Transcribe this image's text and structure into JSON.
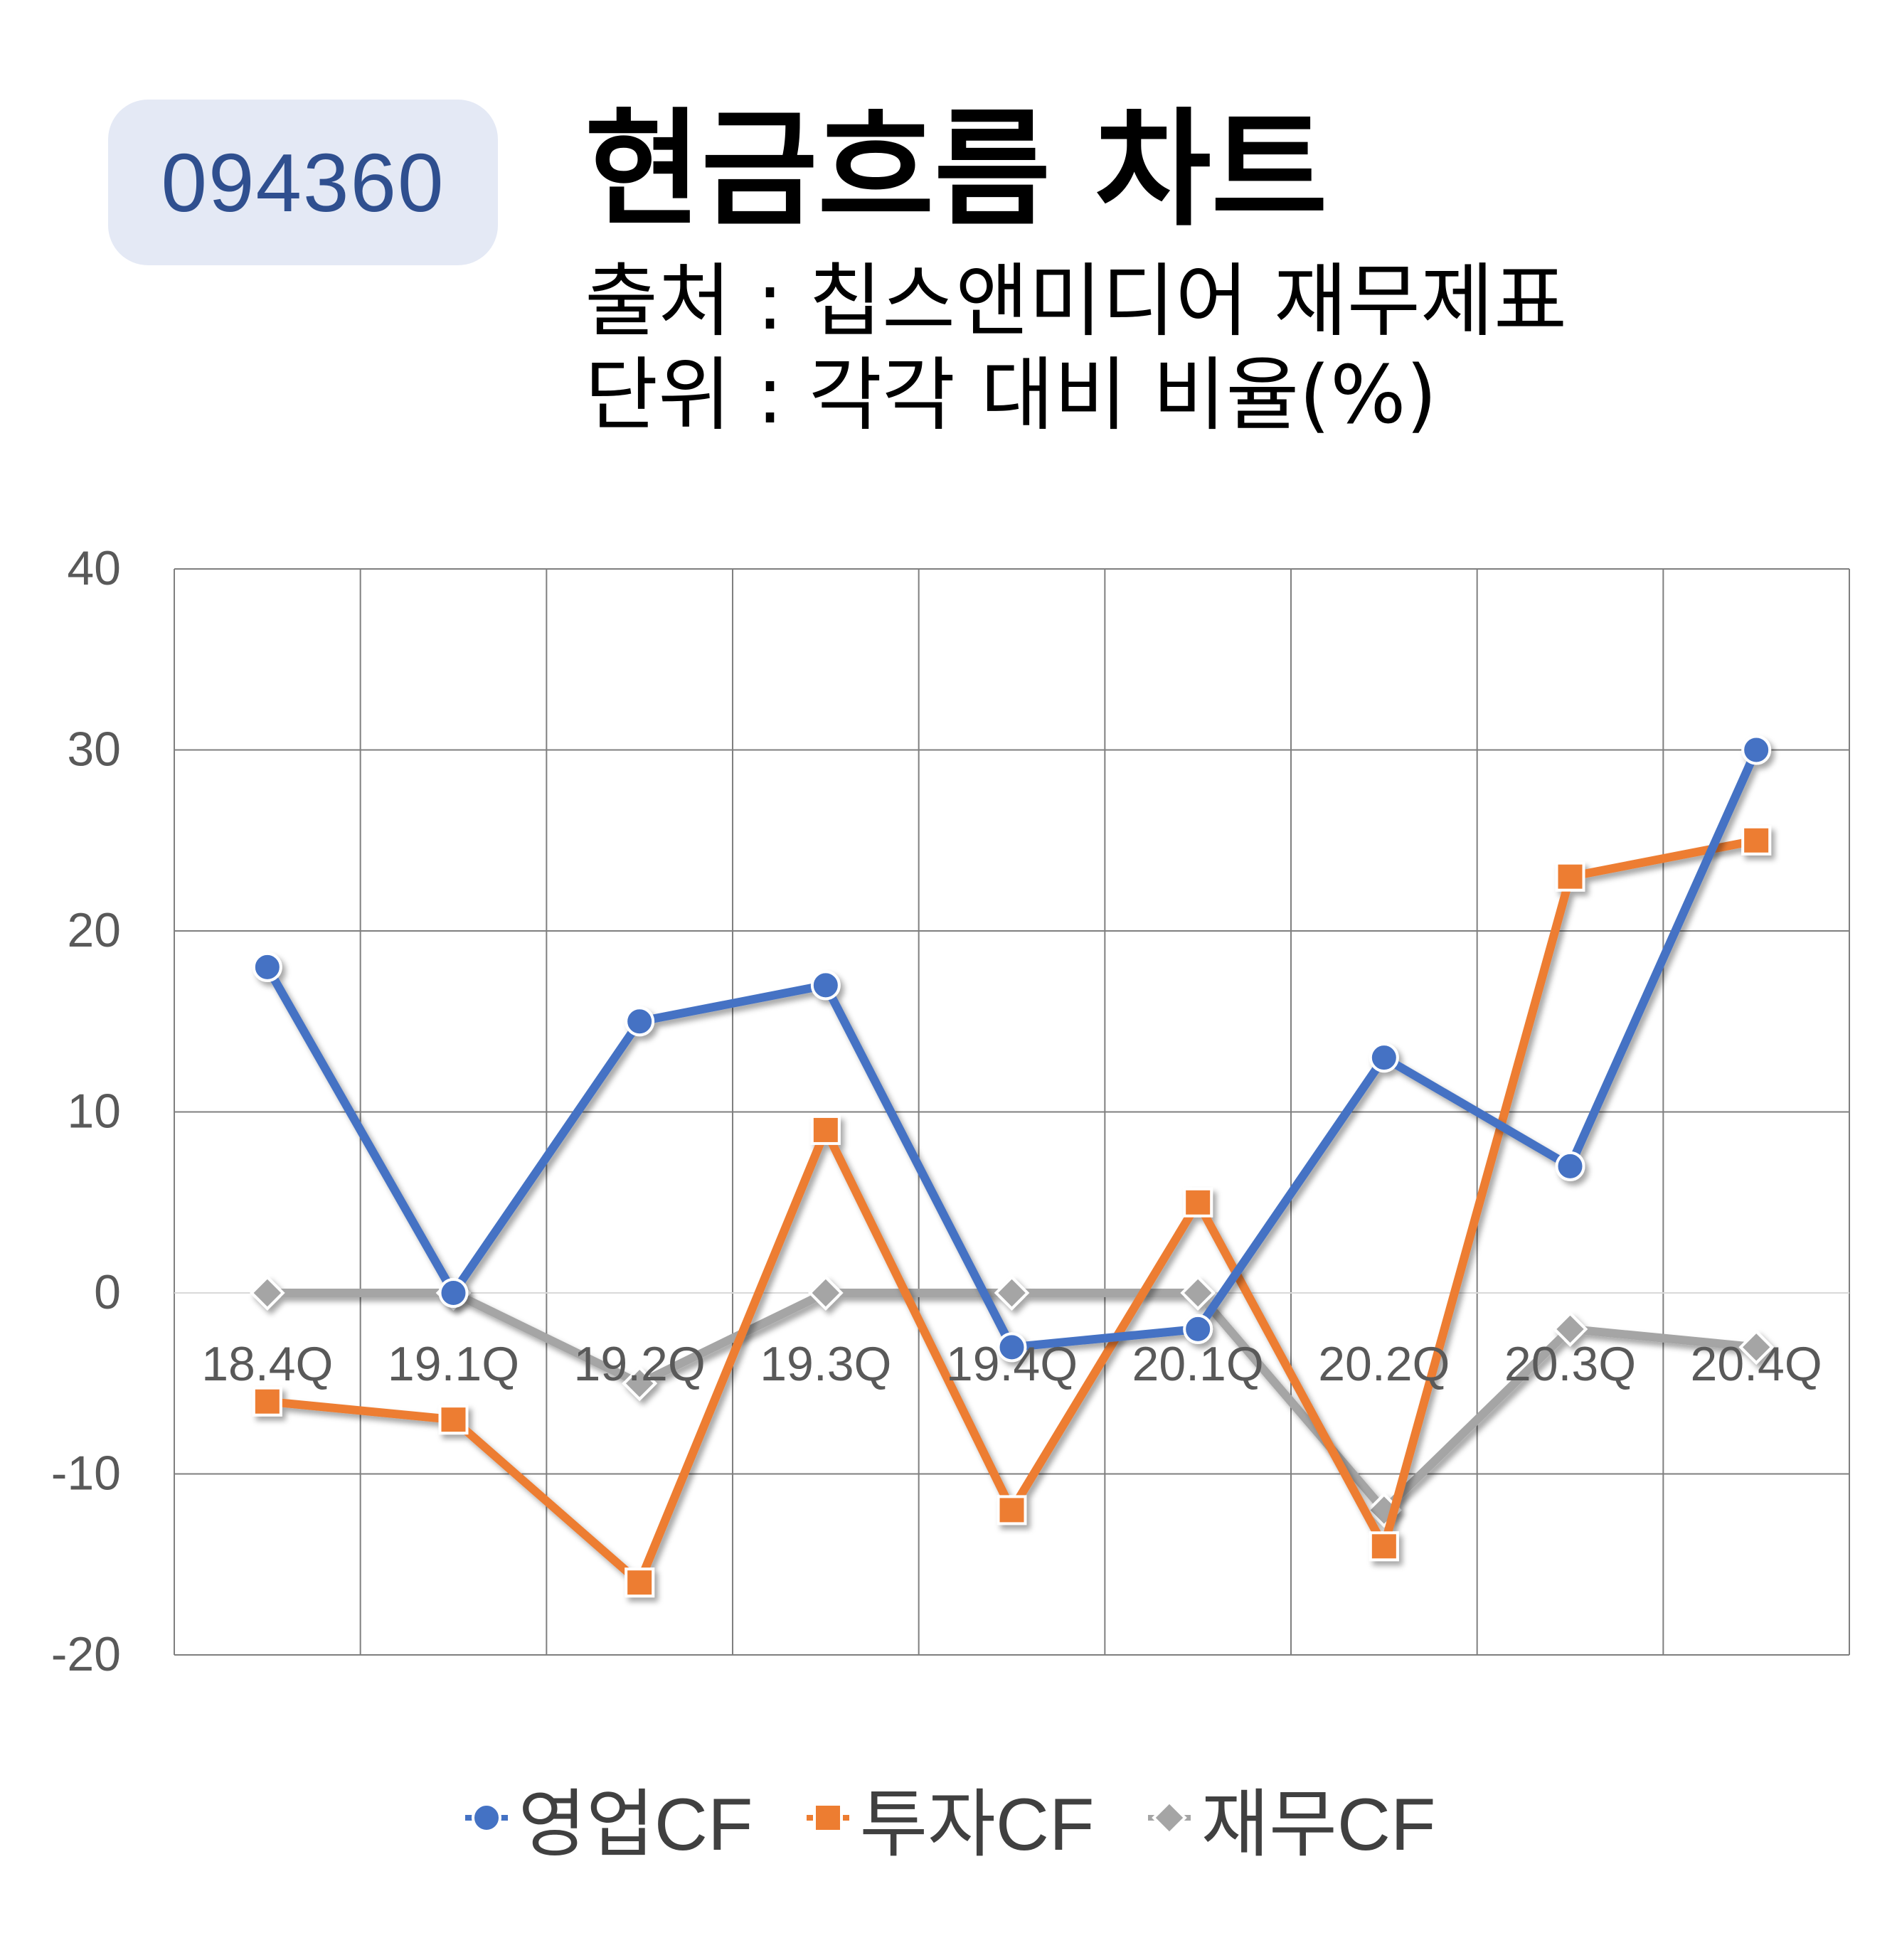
{
  "header": {
    "badge": "094360",
    "title": "현금흐름 차트",
    "source_line": "출처 : 칩스앤미디어 재무제표",
    "unit_line": "단위 : 각각 대비 비율(%)"
  },
  "chart_data": {
    "type": "line",
    "categories": [
      "18.4Q",
      "19.1Q",
      "19.2Q",
      "19.3Q",
      "19.4Q",
      "20.1Q",
      "20.2Q",
      "20.3Q",
      "20.4Q"
    ],
    "series": [
      {
        "name": "영업CF",
        "color": "#4472c4",
        "marker": "circle",
        "values": [
          18,
          0,
          15,
          17,
          -3,
          -2,
          13,
          7,
          30
        ]
      },
      {
        "name": "투자CF",
        "color": "#ed7d31",
        "marker": "square",
        "values": [
          -6,
          -7,
          -16,
          9,
          -12,
          5,
          -14,
          23,
          25
        ]
      },
      {
        "name": "재무CF",
        "color": "#a5a5a5",
        "marker": "diamond",
        "values": [
          0,
          0,
          -5,
          0,
          0,
          0,
          -12,
          -2,
          -3
        ]
      }
    ],
    "yticks": [
      "40",
      "30",
      "20",
      "10",
      "0",
      "-10",
      "-20"
    ],
    "ylim": [
      -20,
      40
    ],
    "grid": true,
    "legend_position": "bottom"
  }
}
